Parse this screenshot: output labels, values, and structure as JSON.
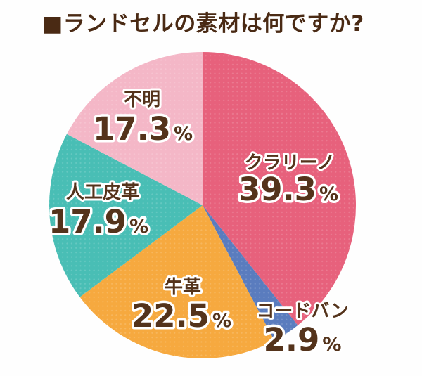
{
  "title": "■ランドセルの素材は何ですか?",
  "chart_data": {
    "type": "pie",
    "title": "ランドセルの素材は何ですか?",
    "unit": "%",
    "start_angle_deg": -90,
    "direction": "clockwise",
    "legend_position": "labels-on-slices",
    "text_color": "#54331b",
    "label_outline_color": "#ffffff",
    "title_color": "#4a2a14",
    "background_color": "#fefefe",
    "segments": [
      {
        "label": "クラリーノ",
        "value": 39.3,
        "color": "#e7617c"
      },
      {
        "label": "コードバン",
        "value": 2.9,
        "color": "#5a7cbe"
      },
      {
        "label": "牛革",
        "value": 22.5,
        "color": "#f6a93f"
      },
      {
        "label": "人工皮革",
        "value": 17.9,
        "color": "#49beb5"
      },
      {
        "label": "不明",
        "value": 17.3,
        "color": "#f4b7c7"
      }
    ]
  }
}
